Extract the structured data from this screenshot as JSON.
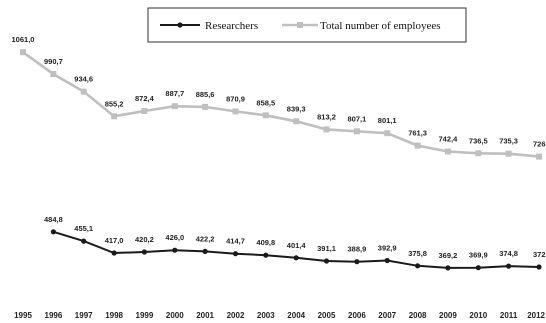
{
  "chart_data": {
    "type": "line",
    "title": "",
    "xlabel": "",
    "ylabel": "",
    "x": [
      "1995",
      "1996",
      "1997",
      "1998",
      "1999",
      "2000",
      "2001",
      "2002",
      "2003",
      "2004",
      "2005",
      "2006",
      "2007",
      "2008",
      "2009",
      "2010",
      "2011",
      "2012"
    ],
    "ylim": [
      0,
      1100
    ],
    "grid": false,
    "legend_position": "top-center",
    "series": [
      {
        "name": "Researchers",
        "color": "#1a1a1a",
        "values": [
          null,
          484.8,
          455.1,
          417.0,
          420.2,
          426.0,
          422.2,
          414.7,
          409.8,
          401.4,
          391.1,
          388.9,
          392.9,
          375.8,
          369.2,
          369.9,
          374.8,
          372.0
        ],
        "labels": [
          "",
          "484,8",
          "455,1",
          "417,0",
          "420,2",
          "426,0",
          "422,2",
          "414,7",
          "409,8",
          "401,4",
          "391,1",
          "388,9",
          "392,9",
          "375,8",
          "369,2",
          "369,9",
          "374,8",
          "372,"
        ]
      },
      {
        "name": "Total number of employees",
        "color": "#bfbfbf",
        "values": [
          1061.0,
          990.7,
          934.6,
          855.2,
          872.4,
          887.7,
          885.6,
          870.9,
          858.5,
          839.3,
          813.2,
          807.1,
          801.1,
          761.3,
          742.4,
          736.5,
          735.3,
          726.0
        ],
        "labels": [
          "1061,0",
          "990,7",
          "934,6",
          "855,2",
          "872,4",
          "887,7",
          "885,6",
          "870,9",
          "858,5",
          "839,3",
          "813,2",
          "807,1",
          "801,1",
          "761,3",
          "742,4",
          "736,5",
          "735,3",
          "726"
        ]
      }
    ]
  }
}
